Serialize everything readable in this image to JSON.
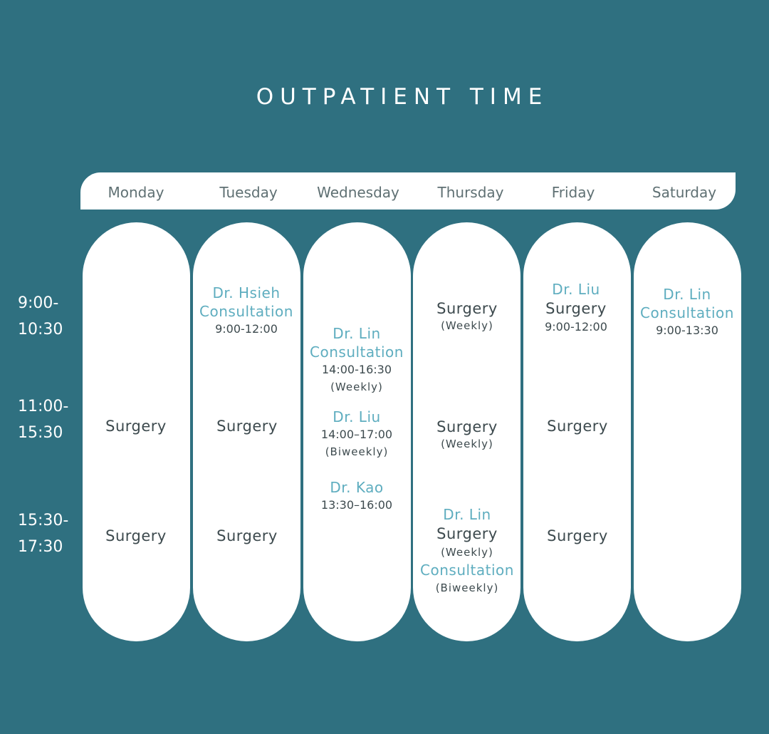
{
  "title": "OUTPATIENT TIME",
  "days": [
    "Monday",
    "Tuesday",
    "Wednesday",
    "Thursday",
    "Friday",
    "Saturday"
  ],
  "time_slots": [
    {
      "start": "9:00-",
      "end": "10:30"
    },
    {
      "start": "11:00-",
      "end": "15:30"
    },
    {
      "start": "15:30-",
      "end": "17:30"
    }
  ],
  "schedule": {
    "monday": {
      "midday": "Surgery",
      "afternoon": "Surgery"
    },
    "tuesday": {
      "morning_doctor": "Dr. Hsieh",
      "morning_type": "Consultation",
      "morning_time": "9:00-12:00",
      "midday": "Surgery",
      "afternoon": "Surgery"
    },
    "wednesday": {
      "lin_doctor": "Dr. Lin",
      "lin_type": "Consultation",
      "lin_time": "14:00-16:30",
      "lin_note": "(Weekly)",
      "liu_doctor": "Dr. Liu",
      "liu_time": "14:00–17:00",
      "liu_note": "(Biweekly)",
      "kao_doctor": "Dr. Kao",
      "kao_time": "13:30–16:00"
    },
    "thursday": {
      "morning_type": "Surgery",
      "morning_note": "(Weekly)",
      "midday_type": "Surgery",
      "midday_note": "(Weekly)",
      "afternoon_doctor": "Dr. Lin",
      "afternoon_type": "Surgery",
      "afternoon_note": "(Weekly)",
      "afternoon_type2": "Consultation",
      "afternoon_note2": "(Biweekly)"
    },
    "friday": {
      "morning_doctor": "Dr. Liu",
      "morning_type": "Surgery",
      "morning_time": "9:00-12:00",
      "midday": "Surgery",
      "afternoon": "Surgery"
    },
    "saturday": {
      "morning_doctor": "Dr. Lin",
      "morning_type": "Consultation",
      "morning_time": "9:00-13:30"
    }
  }
}
